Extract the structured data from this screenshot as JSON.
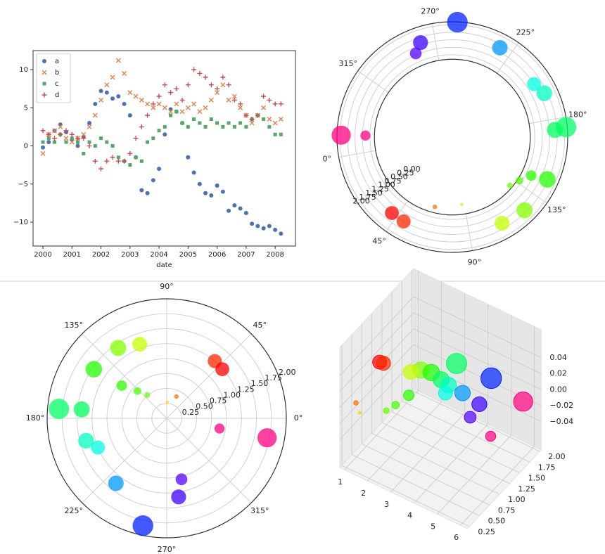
{
  "chart_data": [
    {
      "type": "scatter",
      "xlabel": "date",
      "legend": "upper left",
      "x": [
        2000.0,
        2000.2,
        2000.4,
        2000.6,
        2000.8,
        2001.0,
        2001.2,
        2001.4,
        2001.6,
        2001.8,
        2002.0,
        2002.2,
        2002.4,
        2002.6,
        2002.8,
        2003.0,
        2003.2,
        2003.4,
        2003.6,
        2003.8,
        2004.0,
        2004.2,
        2004.4,
        2004.6,
        2004.8,
        2005.0,
        2005.2,
        2005.4,
        2005.6,
        2005.8,
        2006.0,
        2006.2,
        2006.4,
        2006.6,
        2006.8,
        2007.0,
        2007.2,
        2007.4,
        2007.6,
        2007.8,
        2008.0,
        2008.2
      ],
      "xlim": [
        1999.66,
        2008.7
      ],
      "xticks": [
        2000,
        2001,
        2002,
        2003,
        2004,
        2005,
        2006,
        2007,
        2008
      ],
      "ylim": [
        -13.13,
        12.49
      ],
      "yticks": [
        {
          "value": -10,
          "label": "−10"
        },
        {
          "value": -5,
          "label": "−5"
        },
        0,
        5,
        10
      ],
      "series": [
        {
          "name": "a",
          "marker": "o",
          "color": "#4c72b0",
          "values": [
            -0.2,
            0.5,
            2.0,
            2.8,
            1.8,
            0.8,
            0.0,
            1.2,
            3.0,
            5.5,
            7.2,
            7.0,
            6.2,
            6.5,
            5.5,
            4.0,
            -1.5,
            -5.8,
            -6.2,
            -4.5,
            -3.0,
            1.5,
            4.8,
            4.5,
            3.0,
            -1.5,
            -3.5,
            -5.0,
            -6.2,
            -6.5,
            -5.2,
            -6.0,
            -8.5,
            -7.8,
            -8.2,
            -8.8,
            -10.2,
            -10.5,
            -10.8,
            -10.5,
            -11.0,
            -11.5
          ]
        },
        {
          "name": "b",
          "marker": "x",
          "color": "#dd8452",
          "values": [
            -1.0,
            1.5,
            2.0,
            2.5,
            1.0,
            0.5,
            1.0,
            1.5,
            2.5,
            4.0,
            6.0,
            8.0,
            9.0,
            11.2,
            9.5,
            7.0,
            6.5,
            6.0,
            5.5,
            5.0,
            5.5,
            5.0,
            4.5,
            5.5,
            4.5,
            5.0,
            5.5,
            4.5,
            5.0,
            6.0,
            7.0,
            8.0,
            6.0,
            6.5,
            5.0,
            4.0,
            3.0,
            4.0,
            5.0,
            3.5,
            3.0,
            3.5
          ]
        },
        {
          "name": "c",
          "marker": "s",
          "color": "#55a868",
          "values": [
            0.5,
            1.0,
            0.5,
            1.5,
            0.5,
            1.0,
            0.5,
            -1.0,
            0.5,
            0.0,
            1.0,
            0.5,
            0.0,
            -1.5,
            -2.0,
            -2.5,
            -1.5,
            -2.0,
            0.5,
            1.0,
            2.0,
            2.5,
            4.0,
            4.5,
            3.0,
            2.5,
            3.5,
            3.0,
            2.5,
            3.5,
            3.0,
            2.5,
            3.0,
            2.5,
            3.0,
            2.5,
            3.5,
            4.0,
            3.5,
            2.5,
            1.5,
            1.5
          ]
        },
        {
          "name": "d",
          "marker": "+",
          "color": "#c44e52",
          "values": [
            2.0,
            1.5,
            1.0,
            1.5,
            2.0,
            1.5,
            1.0,
            1.0,
            0.0,
            -2.0,
            -3.0,
            -2.0,
            -1.5,
            -2.0,
            -2.0,
            -1.0,
            1.0,
            2.5,
            4.0,
            5.5,
            6.5,
            8.0,
            7.0,
            7.5,
            6.0,
            8.0,
            10.0,
            9.5,
            9.0,
            8.0,
            7.5,
            9.0,
            8.0,
            6.0,
            5.5,
            4.0,
            3.5,
            4.0,
            6.5,
            6.0,
            5.5,
            5.5
          ]
        }
      ]
    },
    {
      "type": "polar",
      "colormap": "hsv",
      "rlim": [
        0.6,
        1.85
      ],
      "rorigin": -2.0,
      "theta_offset": 190,
      "theta": [
        349,
        349,
        50,
        41.5,
        66,
        88,
        110,
        124.6,
        146,
        144,
        137,
        130,
        175,
        174,
        195.5,
        203,
        232,
        257.5,
        283.6,
        278.6
      ],
      "r": [
        1.71,
        0.9,
        1.25,
        1.24,
        0.4,
        0.27,
        1.32,
        1.43,
        1.47,
        0.93,
        0.67,
        0.51,
        1.81,
        1.43,
        1.4,
        1.25,
        1.38,
        1.84,
        1.05,
        1.33
      ],
      "thetaticks": [
        {
          "value": 0,
          "label": "0°"
        },
        {
          "value": 45,
          "label": "45°"
        },
        {
          "value": 90,
          "label": "90°"
        },
        {
          "value": 135,
          "label": "135°"
        },
        {
          "value": 180,
          "label": "180°"
        },
        {
          "value": 225,
          "label": "225°"
        },
        {
          "value": 270,
          "label": "270°"
        },
        {
          "value": 315,
          "label": "315°"
        }
      ],
      "rticks": [
        {
          "value": 0,
          "label": "0.00"
        },
        0.25,
        {
          "value": 0.5,
          "label": "0.50"
        },
        0.75,
        {
          "value": 1,
          "label": "1.00"
        },
        1.25,
        {
          "value": 1.5,
          "label": "1.50"
        },
        1.75,
        {
          "value": 2,
          "label": "2.00"
        }
      ]
    },
    {
      "type": "polar",
      "colormap": "hsv",
      "rlim": [
        0,
        2
      ],
      "theta_offset": 0,
      "theta": [
        349,
        349,
        50,
        41.5,
        66,
        88,
        110,
        124.6,
        146,
        144,
        137,
        130,
        175,
        174,
        195.5,
        203,
        232,
        257.5,
        283.6,
        278.6
      ],
      "r": [
        1.71,
        0.9,
        1.25,
        1.24,
        0.4,
        0.27,
        1.32,
        1.43,
        1.47,
        0.93,
        0.67,
        0.51,
        1.81,
        1.43,
        1.4,
        1.25,
        1.38,
        1.84,
        1.05,
        1.33
      ],
      "thetaticks": [
        {
          "value": 0,
          "label": "0°"
        },
        {
          "value": 45,
          "label": "45°"
        },
        {
          "value": 90,
          "label": "90°"
        },
        {
          "value": 135,
          "label": "135°"
        },
        {
          "value": 180,
          "label": "180°"
        },
        {
          "value": 225,
          "label": "225°"
        },
        {
          "value": 270,
          "label": "270°"
        },
        {
          "value": 315,
          "label": "315°"
        }
      ],
      "rticks": [
        0.25,
        {
          "value": 0.5,
          "label": "0.50"
        },
        0.75,
        {
          "value": 1,
          "label": "1.00"
        },
        1.25,
        {
          "value": 1.5,
          "label": "1.50"
        },
        1.75,
        {
          "value": 2,
          "label": "2.00"
        }
      ]
    },
    {
      "type": "scatter3d",
      "colormap": "hsv",
      "x": [
        6.09,
        6.09,
        0.87,
        0.72,
        1.15,
        1.54,
        1.92,
        2.17,
        2.55,
        2.51,
        2.39,
        2.27,
        3.05,
        3.04,
        3.41,
        3.54,
        4.05,
        4.49,
        4.95,
        4.86
      ],
      "y": [
        1.71,
        0.9,
        1.25,
        1.24,
        0.4,
        0.27,
        1.32,
        1.43,
        1.47,
        0.93,
        0.67,
        0.51,
        1.81,
        1.43,
        1.4,
        1.25,
        1.38,
        1.84,
        1.05,
        1.33
      ],
      "z": [
        0,
        0,
        0,
        0,
        0,
        0,
        0,
        0,
        0,
        0,
        0,
        0,
        0,
        0,
        0,
        0,
        0,
        0,
        0,
        0
      ],
      "xlim": [
        0.8,
        6.3
      ],
      "ylim": [
        0.2,
        2.04
      ],
      "zlim": [
        -0.075,
        0.075
      ],
      "xticks": [
        1,
        2,
        3,
        4,
        5,
        6
      ],
      "yticks": [
        0.25,
        {
          "value": 0.5,
          "label": "0.50"
        },
        0.75,
        {
          "value": 1,
          "label": "1.00"
        },
        1.25,
        {
          "value": 1.5,
          "label": "1.50"
        },
        1.75,
        {
          "value": 2,
          "label": "2.00"
        }
      ],
      "zticks": [
        {
          "value": -0.04,
          "label": "−0.04"
        },
        {
          "value": -0.02,
          "label": "−0.02"
        },
        {
          "value": 0,
          "label": "0.00"
        },
        0.02,
        0.04
      ]
    }
  ]
}
